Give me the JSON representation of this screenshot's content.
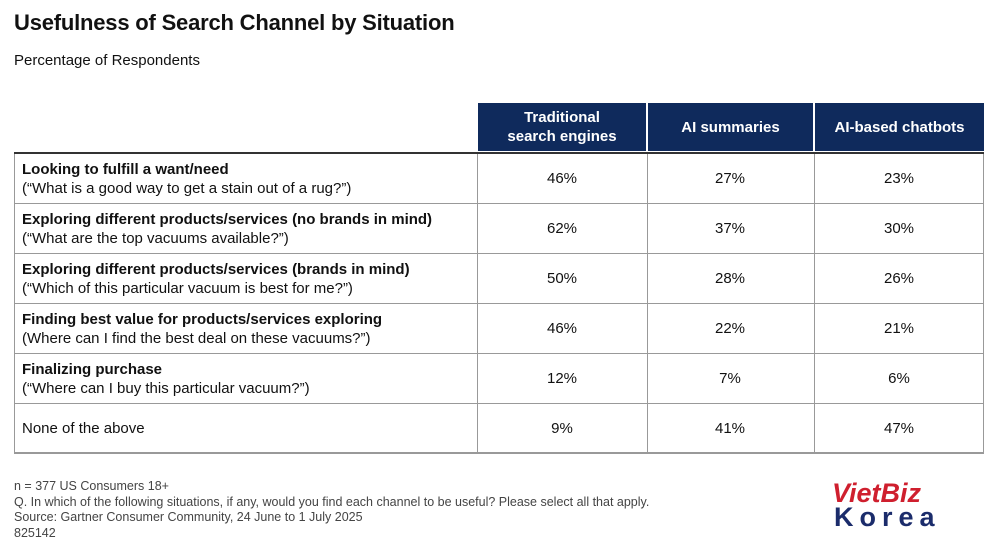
{
  "title": "Usefulness of Search Channel by Situation",
  "subtitle": "Percentage of Respondents",
  "chart_data": {
    "type": "table",
    "columns": [
      "Traditional search engines",
      "AI summaries",
      "AI-based chatbots"
    ],
    "column_header_lines": [
      [
        "Traditional",
        "search engines"
      ],
      [
        "AI summaries"
      ],
      [
        "AI-based chatbots"
      ]
    ],
    "rows": [
      {
        "label": "Looking to fulfill a want/need",
        "example": "(“What is a good way to get a stain out of a rug?”)",
        "bold": true,
        "values": [
          "46%",
          "27%",
          "23%"
        ]
      },
      {
        "label": "Exploring different products/services (no brands in mind)",
        "example": "(“What are the top vacuums available?”)",
        "bold": true,
        "values": [
          "62%",
          "37%",
          "30%"
        ]
      },
      {
        "label": "Exploring different products/services (brands in mind)",
        "example": "(“Which of this particular vacuum is best for me?”)",
        "bold": true,
        "values": [
          "50%",
          "28%",
          "26%"
        ]
      },
      {
        "label": "Finding best value for products/services exploring",
        "example": "(Where can I find the best deal on these vacuums?”)",
        "bold": true,
        "values": [
          "46%",
          "22%",
          "21%"
        ]
      },
      {
        "label": "Finalizing purchase",
        "example": "(“Where can I buy this particular vacuum?”)",
        "bold": true,
        "values": [
          "12%",
          "7%",
          "6%"
        ]
      },
      {
        "label": "None of the above",
        "example": "",
        "bold": false,
        "values": [
          "9%",
          "41%",
          "47%"
        ]
      }
    ]
  },
  "footer": {
    "lines": [
      "n = 377 US Consumers 18+",
      "Q. In which of the following situations, if any, would you find each channel to be useful? Please select all that apply.",
      "Source: Gartner Consumer Community, 24 June to 1 July 2025",
      "825142"
    ]
  },
  "logo": {
    "line1": "VietBiz",
    "line2": "Korea"
  },
  "colors": {
    "header_bg": "#0f2a5c",
    "header_text": "#ffffff",
    "logo_red": "#cf1f2e",
    "logo_navy": "#1b2c6b"
  }
}
